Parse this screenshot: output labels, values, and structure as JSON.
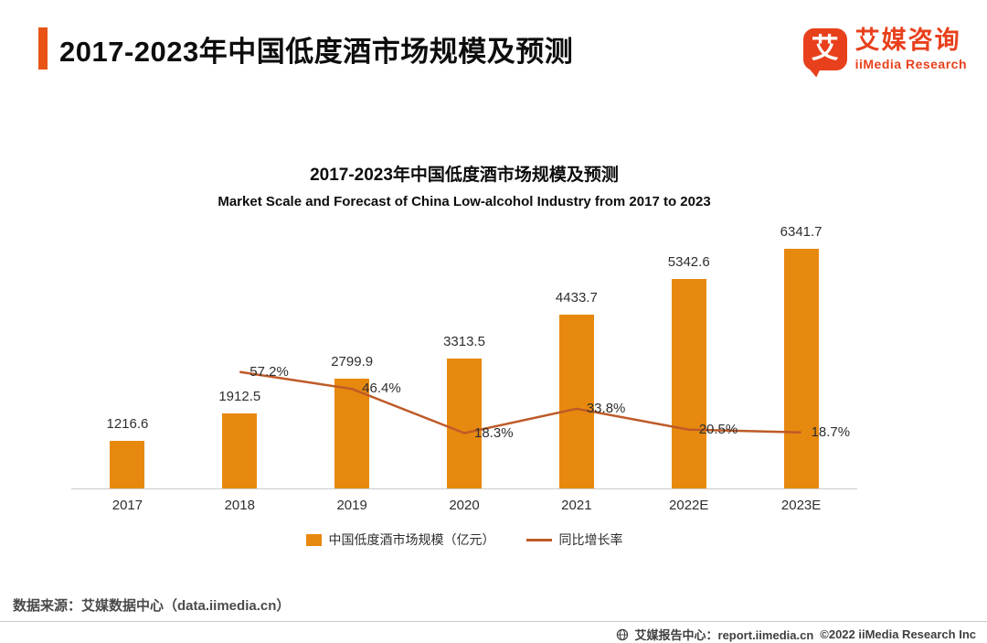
{
  "colors": {
    "accent_bar": "#E85415",
    "brand": "#E8401C",
    "bar": "#E8890F",
    "line": "#BE5A28"
  },
  "header": {
    "title": "2017-2023年中国低度酒市场规模及预测",
    "logo": {
      "icon_char": "艾",
      "name_cn": "艾媒咨询",
      "name_en": "iiMedia Research"
    }
  },
  "chart": {
    "title": "2017-2023年中国低度酒市场规模及预测",
    "subtitle": "Market Scale and Forecast of China Low-alcohol Industry from 2017 to 2023",
    "legend": [
      {
        "type": "bar",
        "label": "中国低度酒市场规模（亿元）"
      },
      {
        "type": "line",
        "label": "同比增长率"
      }
    ]
  },
  "chart_data": {
    "type": "bar",
    "combo": "bar+line",
    "title": "2017-2023年中国低度酒市场规模及预测",
    "subtitle": "Market Scale and Forecast of China Low-alcohol Industry from 2017 to 2023",
    "categories": [
      "2017",
      "2018",
      "2019",
      "2020",
      "2021",
      "2022E",
      "2023E"
    ],
    "series": [
      {
        "name": "中国低度酒市场规模（亿元）",
        "type": "bar",
        "unit": "亿元",
        "values": [
          1216.6,
          1912.5,
          2799.9,
          3313.5,
          4433.7,
          5342.6,
          6341.7
        ]
      },
      {
        "name": "同比增长率",
        "type": "line",
        "unit": "%",
        "values": [
          null,
          57.2,
          46.4,
          18.3,
          33.8,
          20.5,
          18.7
        ]
      }
    ],
    "xlabel": "",
    "ylabel": "",
    "grid": false,
    "legend_position": "bottom"
  },
  "footer": {
    "source": "数据来源：艾媒数据中心（data.iimedia.cn）",
    "report_center": "艾媒报告中心：report.iimedia.cn",
    "copyright": "©2022  iiMedia Research Inc"
  }
}
